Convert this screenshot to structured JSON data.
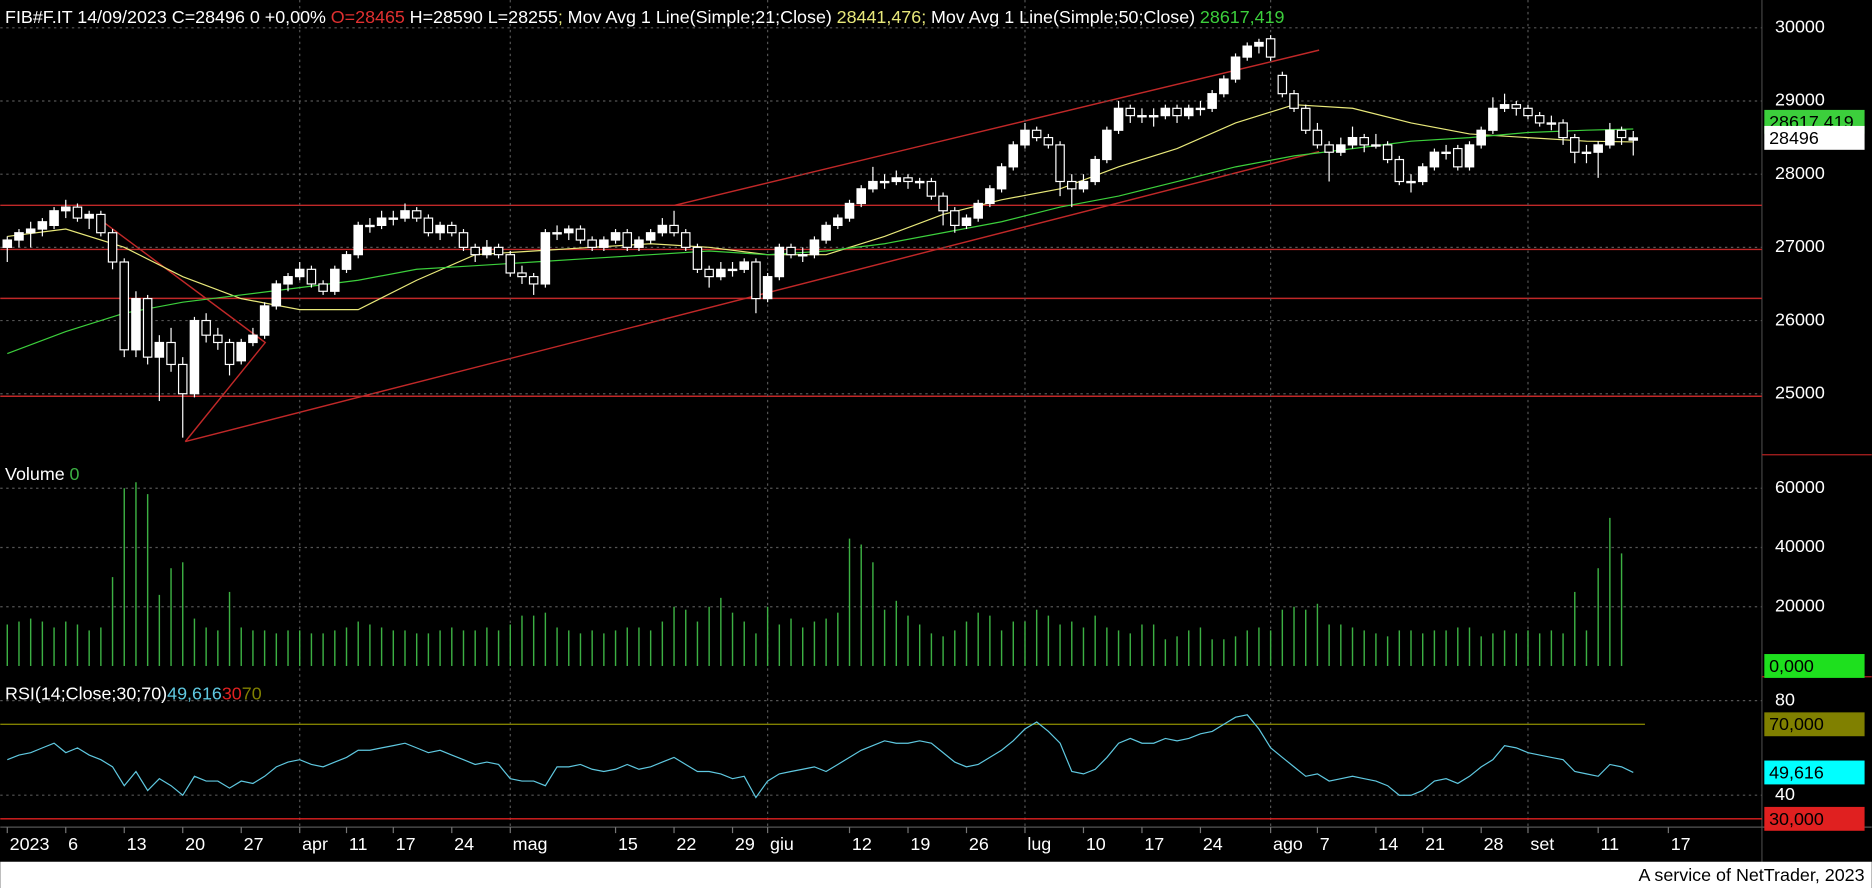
{
  "chart_data": {
    "type": "candlestick",
    "title": "FIB#F.IT 14/09/2023 C=28496 0 +0,00%",
    "quote": {
      "open_label": "O=28465",
      "open_color": "#e03030",
      "range_label": "H=28590 L=28255"
    },
    "separator": ";",
    "price_tag": "28496",
    "footer": "A service of NetTrader, 2023",
    "up_color": "#ffffff",
    "down_color": "#000000",
    "xlim": [
      -0.6,
      150
    ],
    "ylim": [
      24150,
      30380
    ],
    "yticks": [
      25000,
      26000,
      27000,
      28000,
      29000,
      30000
    ],
    "grid": true,
    "xticks": [
      {
        "value": 0,
        "label": "2023"
      },
      {
        "value": 5,
        "label": "6"
      },
      {
        "value": 10,
        "label": "13"
      },
      {
        "value": 15,
        "label": "20"
      },
      {
        "value": 20,
        "label": "27"
      },
      {
        "value": 25,
        "label": "apr",
        "grid": true
      },
      {
        "value": 29,
        "label": "11"
      },
      {
        "value": 33,
        "label": "17"
      },
      {
        "value": 38,
        "label": "24"
      },
      {
        "value": 43,
        "label": "mag",
        "grid": true
      },
      {
        "value": 52,
        "label": "15"
      },
      {
        "value": 57,
        "label": "22"
      },
      {
        "value": 62,
        "label": "29"
      },
      {
        "value": 65,
        "label": "giu",
        "grid": true
      },
      {
        "value": 72,
        "label": "12"
      },
      {
        "value": 77,
        "label": "19"
      },
      {
        "value": 82,
        "label": "26"
      },
      {
        "value": 87,
        "label": "lug",
        "grid": true
      },
      {
        "value": 92,
        "label": "10"
      },
      {
        "value": 97,
        "label": "17"
      },
      {
        "value": 102,
        "label": "24"
      },
      {
        "value": 108,
        "label": "ago",
        "grid": true
      },
      {
        "value": 112,
        "label": "7"
      },
      {
        "value": 117,
        "label": "14"
      },
      {
        "value": 121,
        "label": "21"
      },
      {
        "value": 126,
        "label": "28"
      },
      {
        "value": 130,
        "label": "set",
        "grid": true
      },
      {
        "value": 136,
        "label": "11"
      },
      {
        "value": 142,
        "label": "17"
      }
    ],
    "ohlc": [
      [
        27000,
        27150,
        26800,
        27100
      ],
      [
        27100,
        27250,
        27000,
        27200
      ],
      [
        27200,
        27350,
        27000,
        27250
      ],
      [
        27250,
        27400,
        27150,
        27350
      ],
      [
        27300,
        27550,
        27250,
        27500
      ],
      [
        27500,
        27650,
        27400,
        27550
      ],
      [
        27550,
        27600,
        27350,
        27400
      ],
      [
        27400,
        27500,
        27250,
        27450
      ],
      [
        27450,
        27500,
        27150,
        27200
      ],
      [
        27200,
        27250,
        26700,
        26800
      ],
      [
        26800,
        26850,
        25500,
        25600
      ],
      [
        25600,
        26400,
        25500,
        26300
      ],
      [
        26300,
        26350,
        25400,
        25500
      ],
      [
        25500,
        25800,
        24900,
        25700
      ],
      [
        25700,
        25900,
        25300,
        25400
      ],
      [
        25400,
        25500,
        24400,
        25000
      ],
      [
        25000,
        26050,
        24950,
        26000
      ],
      [
        26000,
        26100,
        25700,
        25800
      ],
      [
        25800,
        25900,
        25600,
        25700
      ],
      [
        25700,
        25750,
        25250,
        25400
      ],
      [
        25450,
        25750,
        25400,
        25700
      ],
      [
        25700,
        25900,
        25650,
        25800
      ],
      [
        25800,
        26250,
        25750,
        26200
      ],
      [
        26200,
        26550,
        26150,
        26500
      ],
      [
        26500,
        26650,
        26400,
        26600
      ],
      [
        26600,
        26800,
        26550,
        26700
      ],
      [
        26700,
        26750,
        26450,
        26500
      ],
      [
        26500,
        26550,
        26350,
        26400
      ],
      [
        26400,
        26750,
        26350,
        26700
      ],
      [
        26700,
        26950,
        26650,
        26900
      ],
      [
        26900,
        27350,
        26850,
        27300
      ],
      [
        27300,
        27400,
        27200,
        27300
      ],
      [
        27300,
        27500,
        27250,
        27400
      ],
      [
        27400,
        27500,
        27300,
        27400
      ],
      [
        27400,
        27600,
        27350,
        27500
      ],
      [
        27500,
        27550,
        27350,
        27400
      ],
      [
        27400,
        27450,
        27150,
        27200
      ],
      [
        27200,
        27350,
        27100,
        27300
      ],
      [
        27300,
        27350,
        27150,
        27200
      ],
      [
        27200,
        27250,
        26950,
        27000
      ],
      [
        27000,
        27050,
        26800,
        26900
      ],
      [
        26900,
        27100,
        26850,
        27000
      ],
      [
        27000,
        27050,
        26850,
        26900
      ],
      [
        26900,
        26950,
        26600,
        26650
      ],
      [
        26650,
        26750,
        26500,
        26600
      ],
      [
        26600,
        26650,
        26350,
        26500
      ],
      [
        26500,
        27250,
        26450,
        27200
      ],
      [
        27200,
        27300,
        27100,
        27200
      ],
      [
        27200,
        27300,
        27100,
        27250
      ],
      [
        27250,
        27300,
        27050,
        27100
      ],
      [
        27100,
        27150,
        26950,
        27000
      ],
      [
        27000,
        27150,
        26950,
        27100
      ],
      [
        27100,
        27250,
        27050,
        27200
      ],
      [
        27200,
        27250,
        26950,
        27000
      ],
      [
        27000,
        27150,
        26950,
        27100
      ],
      [
        27100,
        27250,
        27050,
        27200
      ],
      [
        27200,
        27400,
        27150,
        27300
      ],
      [
        27300,
        27500,
        27150,
        27200
      ],
      [
        27200,
        27250,
        26950,
        27000
      ],
      [
        27000,
        27050,
        26650,
        26700
      ],
      [
        26700,
        26750,
        26450,
        26600
      ],
      [
        26600,
        26800,
        26550,
        26700
      ],
      [
        26700,
        26800,
        26600,
        26700
      ],
      [
        26700,
        26850,
        26650,
        26800
      ],
      [
        26800,
        26850,
        26100,
        26300
      ],
      [
        26300,
        26650,
        26250,
        26600
      ],
      [
        26600,
        27050,
        26550,
        27000
      ],
      [
        27000,
        27050,
        26850,
        26900
      ],
      [
        26900,
        27000,
        26800,
        26900
      ],
      [
        26900,
        27150,
        26850,
        27100
      ],
      [
        27100,
        27350,
        27050,
        27300
      ],
      [
        27300,
        27450,
        27250,
        27400
      ],
      [
        27400,
        27650,
        27350,
        27600
      ],
      [
        27600,
        27850,
        27550,
        27800
      ],
      [
        27800,
        28100,
        27750,
        27900
      ],
      [
        27900,
        28000,
        27800,
        27900
      ],
      [
        27900,
        28050,
        27850,
        27950
      ],
      [
        27950,
        28000,
        27800,
        27900
      ],
      [
        27900,
        27950,
        27800,
        27900
      ],
      [
        27900,
        27950,
        27650,
        27700
      ],
      [
        27700,
        27750,
        27300,
        27500
      ],
      [
        27500,
        27550,
        27200,
        27300
      ],
      [
        27300,
        27450,
        27250,
        27400
      ],
      [
        27400,
        27650,
        27350,
        27600
      ],
      [
        27600,
        27850,
        27550,
        27800
      ],
      [
        27800,
        28150,
        27750,
        28100
      ],
      [
        28100,
        28450,
        28050,
        28400
      ],
      [
        28400,
        28700,
        28350,
        28600
      ],
      [
        28600,
        28650,
        28450,
        28500
      ],
      [
        28500,
        28550,
        28350,
        28400
      ],
      [
        28400,
        28450,
        27700,
        27900
      ],
      [
        27900,
        28000,
        27550,
        27800
      ],
      [
        27800,
        28000,
        27750,
        27900
      ],
      [
        27900,
        28250,
        27850,
        28200
      ],
      [
        28200,
        28650,
        28150,
        28600
      ],
      [
        28600,
        29000,
        28550,
        28900
      ],
      [
        28900,
        28950,
        28700,
        28800
      ],
      [
        28800,
        28900,
        28700,
        28800
      ],
      [
        28800,
        28900,
        28650,
        28800
      ],
      [
        28800,
        28950,
        28750,
        28900
      ],
      [
        28900,
        28950,
        28700,
        28800
      ],
      [
        28800,
        28950,
        28750,
        28900
      ],
      [
        28900,
        29000,
        28800,
        28900
      ],
      [
        28900,
        29150,
        28850,
        29100
      ],
      [
        29100,
        29350,
        29050,
        29300
      ],
      [
        29300,
        29650,
        29250,
        29600
      ],
      [
        29600,
        29800,
        29550,
        29750
      ],
      [
        29750,
        29850,
        29650,
        29800
      ],
      [
        29850,
        29900,
        29550,
        29600
      ],
      [
        29350,
        29400,
        29050,
        29100
      ],
      [
        29100,
        29150,
        28850,
        28900
      ],
      [
        28900,
        28950,
        28550,
        28600
      ],
      [
        28600,
        28700,
        28350,
        28400
      ],
      [
        28400,
        28450,
        27900,
        28300
      ],
      [
        28300,
        28500,
        28250,
        28400
      ],
      [
        28400,
        28650,
        28350,
        28500
      ],
      [
        28500,
        28550,
        28300,
        28400
      ],
      [
        28400,
        28550,
        28350,
        28400
      ],
      [
        28400,
        28450,
        28150,
        28200
      ],
      [
        28200,
        28250,
        27850,
        27900
      ],
      [
        27900,
        28000,
        27750,
        27900
      ],
      [
        27900,
        28150,
        27850,
        28100
      ],
      [
        28100,
        28350,
        28050,
        28300
      ],
      [
        28300,
        28400,
        28200,
        28300
      ],
      [
        28350,
        28400,
        28050,
        28100
      ],
      [
        28100,
        28450,
        28050,
        28400
      ],
      [
        28400,
        28650,
        28350,
        28600
      ],
      [
        28600,
        29050,
        28550,
        28900
      ],
      [
        28900,
        29100,
        28850,
        28950
      ],
      [
        28950,
        29000,
        28800,
        28900
      ],
      [
        28900,
        28950,
        28750,
        28800
      ],
      [
        28800,
        28850,
        28650,
        28700
      ],
      [
        28700,
        28800,
        28600,
        28700
      ],
      [
        28700,
        28750,
        28400,
        28500
      ],
      [
        28500,
        28550,
        28150,
        28300
      ],
      [
        28300,
        28400,
        28150,
        28300
      ],
      [
        28300,
        28450,
        27950,
        28400
      ],
      [
        28400,
        28700,
        28350,
        28600
      ],
      [
        28600,
        28650,
        28400,
        28500
      ],
      [
        28465,
        28590,
        28255,
        28496
      ]
    ],
    "series": [
      {
        "name": "Mov Avg 1 Line(Simple;21;Close)",
        "color": "#e8e87a",
        "last_label": "28441,476",
        "x": [
          0,
          5,
          10,
          15,
          20,
          25,
          30,
          35,
          40,
          45,
          50,
          55,
          60,
          65,
          70,
          75,
          80,
          85,
          90,
          95,
          100,
          105,
          110,
          115,
          120,
          125,
          130,
          135,
          139
        ],
        "values": [
          27150,
          27250,
          27000,
          26600,
          26300,
          26150,
          26150,
          26550,
          26900,
          26950,
          27000,
          27050,
          27000,
          26900,
          26900,
          27150,
          27450,
          27650,
          27800,
          28100,
          28350,
          28700,
          28950,
          28900,
          28700,
          28550,
          28500,
          28450,
          28441.476
        ]
      },
      {
        "name": "Mov Avg 1 Line(Simple;50;Close)",
        "color": "#3ccf3c",
        "last_label": "28617,419",
        "x": [
          0,
          5,
          10,
          15,
          20,
          25,
          30,
          35,
          40,
          45,
          50,
          55,
          60,
          65,
          70,
          75,
          80,
          85,
          90,
          95,
          100,
          105,
          110,
          115,
          120,
          125,
          130,
          135,
          139
        ],
        "values": [
          25550,
          25850,
          26100,
          26250,
          26350,
          26450,
          26550,
          26700,
          26750,
          26800,
          26850,
          26900,
          26950,
          26900,
          26950,
          27050,
          27200,
          27350,
          27550,
          27700,
          27900,
          28100,
          28250,
          28350,
          28450,
          28500,
          28570,
          28600,
          28617.419
        ]
      }
    ],
    "volume": {
      "type": "bar",
      "name": "Volume",
      "color": "#3cb043",
      "tag_label": "0,000",
      "ylim": [
        -2830,
        70500
      ],
      "yticks": [
        20000,
        40000,
        60000
      ],
      "values": [
        14000,
        15000,
        16000,
        15000,
        13000,
        15000,
        14000,
        12000,
        13000,
        30000,
        60000,
        62000,
        58000,
        24000,
        33000,
        35000,
        16000,
        13000,
        12000,
        25000,
        13000,
        12000,
        12000,
        11000,
        12000,
        12000,
        11000,
        11000,
        12000,
        13000,
        15000,
        14000,
        13000,
        12000,
        12000,
        11000,
        11000,
        12000,
        13000,
        12000,
        12000,
        13000,
        12000,
        14000,
        17000,
        17000,
        18000,
        13000,
        12000,
        11000,
        12000,
        11000,
        12000,
        13000,
        13000,
        12000,
        15000,
        20000,
        19000,
        15000,
        20000,
        23000,
        18000,
        15000,
        11000,
        20000,
        14000,
        16000,
        13000,
        15000,
        16000,
        18000,
        43000,
        41000,
        35000,
        19000,
        22000,
        17000,
        14000,
        11000,
        10000,
        12000,
        15000,
        18000,
        17000,
        12000,
        15000,
        15000,
        19000,
        17000,
        14000,
        15000,
        13000,
        17000,
        13000,
        12000,
        11000,
        14000,
        14000,
        9000,
        10000,
        12000,
        13000,
        9000,
        9000,
        10000,
        12000,
        13000,
        12000,
        19000,
        20000,
        19000,
        21000,
        14000,
        14000,
        13000,
        12000,
        11000,
        10000,
        12000,
        12000,
        11000,
        12000,
        12000,
        13000,
        13000,
        10000,
        11000,
        12000,
        11000,
        12000,
        11000,
        12000,
        11000,
        25000,
        12000,
        33000,
        50000,
        38000,
        0
      ]
    },
    "rsi": {
      "type": "line",
      "name": "RSI(14;Close;30;70)",
      "color": "#5fc8e0",
      "value_label": "49,616",
      "ylim": [
        27,
        88.6
      ],
      "yticks": [
        40,
        80
      ],
      "levels": [
        {
          "value": 30,
          "label": "30",
          "tag": "30,000",
          "color": "#e02020"
        },
        {
          "value": 70,
          "label": "70",
          "tag": "70,000",
          "color": "#808000"
        }
      ],
      "values": [
        55,
        57,
        58,
        60,
        62,
        58,
        60,
        57,
        55,
        52,
        44,
        50,
        42,
        47,
        44,
        40,
        48,
        46,
        46,
        43,
        46,
        45,
        48,
        52,
        54,
        55,
        53,
        52,
        54,
        56,
        59,
        59,
        60,
        61,
        62,
        60,
        58,
        59,
        57,
        55,
        53,
        54,
        53,
        47,
        46,
        46,
        44,
        52,
        52,
        53,
        51,
        50,
        51,
        53,
        51,
        52,
        54,
        56,
        53,
        50,
        50,
        49,
        47,
        48,
        39,
        46,
        49,
        50,
        51,
        52,
        50,
        53,
        56,
        59,
        61,
        63,
        62,
        62,
        63,
        62,
        58,
        54,
        52,
        53,
        56,
        59,
        63,
        68,
        71,
        67,
        62,
        50,
        49,
        51,
        56,
        62,
        64,
        62,
        62,
        64,
        63,
        64,
        66,
        67,
        70,
        73,
        74,
        68,
        60,
        56,
        52,
        48,
        49,
        46,
        47,
        48,
        47,
        46,
        44,
        40,
        40,
        42,
        46,
        47,
        45,
        48,
        52,
        55,
        61,
        60,
        58,
        57,
        56,
        55,
        50,
        49,
        48,
        53,
        52,
        49.616
      ]
    }
  }
}
